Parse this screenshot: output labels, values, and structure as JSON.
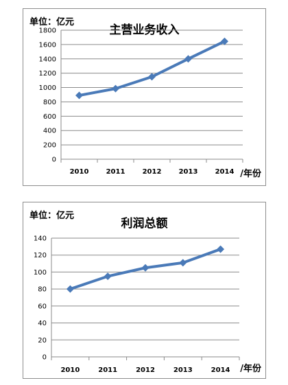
{
  "charts": [
    {
      "unit_label": "单位：亿元",
      "year_suffix": "/年份"
    },
    {
      "unit_label": "单位：亿元",
      "year_suffix": "/年份"
    }
  ],
  "chart_data": [
    {
      "type": "line",
      "title": "主营业务收入",
      "xlabel": "/年份",
      "ylabel": "单位：亿元",
      "categories": [
        "2010",
        "2011",
        "2012",
        "2013",
        "2014"
      ],
      "values": [
        890,
        985,
        1150,
        1400,
        1645
      ],
      "ylim": [
        0,
        1800
      ],
      "yticks": [
        0,
        200,
        400,
        600,
        800,
        1000,
        1200,
        1400,
        1600,
        1800
      ],
      "grid": true,
      "line_color": "#4a7ab8"
    },
    {
      "type": "line",
      "title": "利润总额",
      "xlabel": "/年份",
      "ylabel": "单位：亿元",
      "categories": [
        "2010",
        "2011",
        "2012",
        "2013",
        "2014"
      ],
      "values": [
        80,
        95,
        105,
        111,
        127
      ],
      "ylim": [
        0,
        140
      ],
      "yticks": [
        0,
        20,
        40,
        60,
        80,
        100,
        120,
        140
      ],
      "grid": true,
      "line_color": "#4a7ab8"
    }
  ]
}
